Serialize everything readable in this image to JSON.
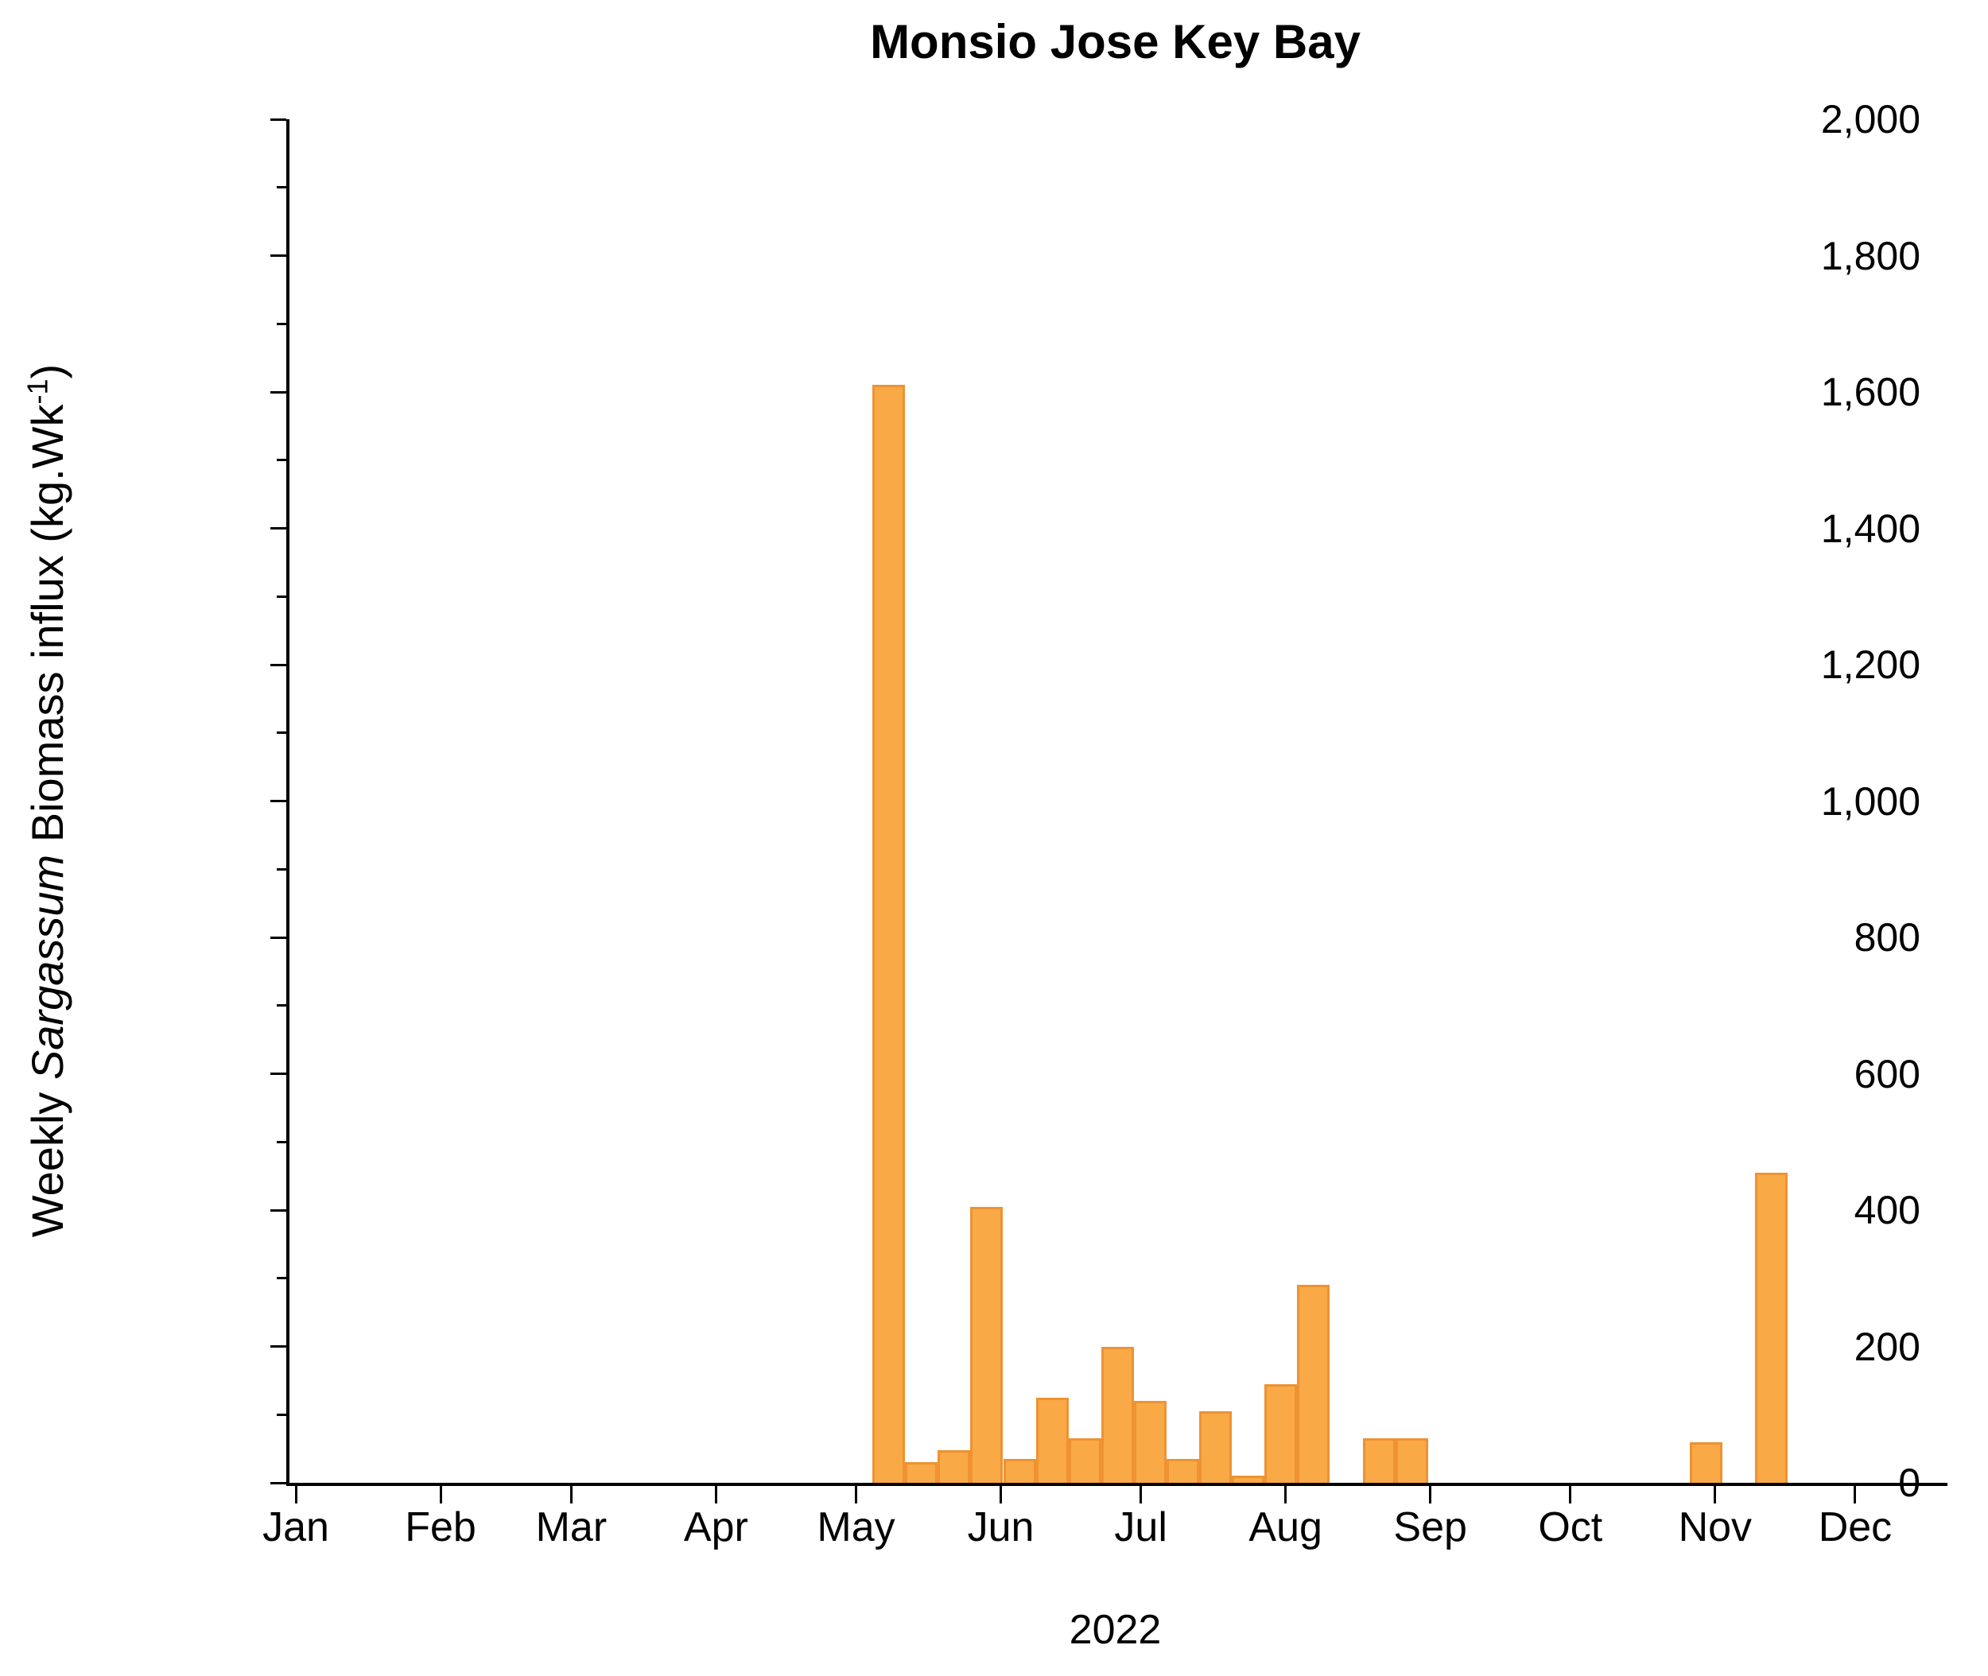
{
  "title": "Monsio Jose Key Bay",
  "axes": {
    "y_title_parts": {
      "prefix": "Weekly ",
      "italic": "Sargassum",
      "middle": " Biomass influx (kg.Wk",
      "sup": "-1",
      "suffix": ")"
    },
    "x_title": "2022"
  },
  "chart_data": {
    "type": "bar",
    "title": "Monsio Jose Key Bay",
    "xlabel": "2022",
    "ylabel": "Weekly Sargassum Biomass influx (kg.Wk-1)",
    "ylim": [
      0,
      2000
    ],
    "y_major_step": 200,
    "y_minor_step": 100,
    "y_tick_labels": [
      "0",
      "200",
      "400",
      "600",
      "800",
      "1,000",
      "1,200",
      "1,400",
      "1,600",
      "1,800",
      "2,000"
    ],
    "x_tick_labels": [
      "Jan",
      "Feb",
      "Mar",
      "Apr",
      "May",
      "Jun",
      "Jul",
      "Aug",
      "Sep",
      "Oct",
      "Nov",
      "Dec"
    ],
    "month_start_days": [
      0,
      31,
      59,
      90,
      120,
      151,
      181,
      212,
      243,
      273,
      304,
      334
    ],
    "grid": false,
    "legend": "none",
    "bar_color": "#F9A945",
    "bar_edge_color": "#EE9232",
    "points": [
      {
        "week_start": "2022-05-08",
        "day": 127,
        "value": 1610
      },
      {
        "week_start": "2022-05-15",
        "day": 134,
        "value": 30
      },
      {
        "week_start": "2022-05-22",
        "day": 141,
        "value": 48
      },
      {
        "week_start": "2022-05-29",
        "day": 148,
        "value": 405
      },
      {
        "week_start": "2022-06-05",
        "day": 155,
        "value": 35
      },
      {
        "week_start": "2022-06-12",
        "day": 162,
        "value": 125
      },
      {
        "week_start": "2022-06-19",
        "day": 169,
        "value": 65
      },
      {
        "week_start": "2022-06-26",
        "day": 176,
        "value": 200
      },
      {
        "week_start": "2022-07-03",
        "day": 183,
        "value": 120
      },
      {
        "week_start": "2022-07-10",
        "day": 190,
        "value": 35
      },
      {
        "week_start": "2022-07-17",
        "day": 197,
        "value": 105
      },
      {
        "week_start": "2022-07-24",
        "day": 204,
        "value": 10
      },
      {
        "week_start": "2022-07-31",
        "day": 211,
        "value": 145
      },
      {
        "week_start": "2022-08-07",
        "day": 218,
        "value": 290
      },
      {
        "week_start": "2022-08-21",
        "day": 232,
        "value": 65
      },
      {
        "week_start": "2022-08-28",
        "day": 239,
        "value": 65
      },
      {
        "week_start": "2022-10-30",
        "day": 302,
        "value": 60
      },
      {
        "week_start": "2022-11-13",
        "day": 316,
        "value": 455
      }
    ]
  }
}
